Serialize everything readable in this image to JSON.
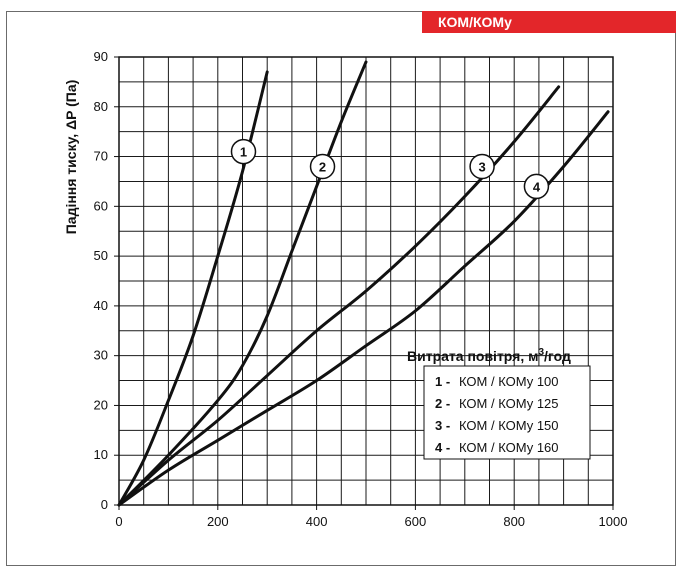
{
  "header": {
    "badge": "КОМ/КОМу"
  },
  "chart_data": {
    "type": "line",
    "title": "",
    "xlabel_main": "Витрата повітря, м",
    "xlabel_sup": "3",
    "xlabel_tail": "/год",
    "ylabel": "Падіння тиску, ΔP (Па)",
    "xlim": [
      0,
      1000
    ],
    "ylim": [
      0,
      90
    ],
    "xticks": [
      0,
      200,
      400,
      600,
      800,
      1000
    ],
    "yticks": [
      0,
      10,
      20,
      30,
      40,
      50,
      60,
      70,
      80,
      90
    ],
    "grid": true,
    "legend_position": "bottom-right",
    "series": [
      {
        "id": "1",
        "name": "КОМ / КОМу 100",
        "x": [
          0,
          50,
          100,
          150,
          200,
          250,
          300
        ],
        "y": [
          0,
          9,
          21,
          34,
          50,
          67,
          87
        ]
      },
      {
        "id": "2",
        "name": "КОМ / КОМу 125",
        "x": [
          0,
          100,
          200,
          250,
          300,
          350,
          400,
          450,
          500
        ],
        "y": [
          0,
          10,
          21,
          28,
          38,
          51,
          64,
          77,
          89
        ]
      },
      {
        "id": "3",
        "name": "КОМ / КОМу 150",
        "x": [
          0,
          100,
          200,
          300,
          400,
          500,
          600,
          700,
          800,
          890
        ],
        "y": [
          0,
          9,
          17,
          26,
          35,
          43,
          52,
          62,
          73,
          84
        ]
      },
      {
        "id": "4",
        "name": "КОМ / КОМу 160",
        "x": [
          0,
          100,
          200,
          300,
          400,
          500,
          600,
          700,
          800,
          900,
          990
        ],
        "y": [
          0,
          7,
          13,
          19,
          25,
          32,
          39,
          48,
          57,
          68,
          79
        ]
      }
    ],
    "label_positions": [
      {
        "id": "1",
        "x": 252,
        "y": 71
      },
      {
        "id": "2",
        "x": 412,
        "y": 68
      },
      {
        "id": "3",
        "x": 735,
        "y": 68
      },
      {
        "id": "4",
        "x": 845,
        "y": 64
      }
    ]
  }
}
